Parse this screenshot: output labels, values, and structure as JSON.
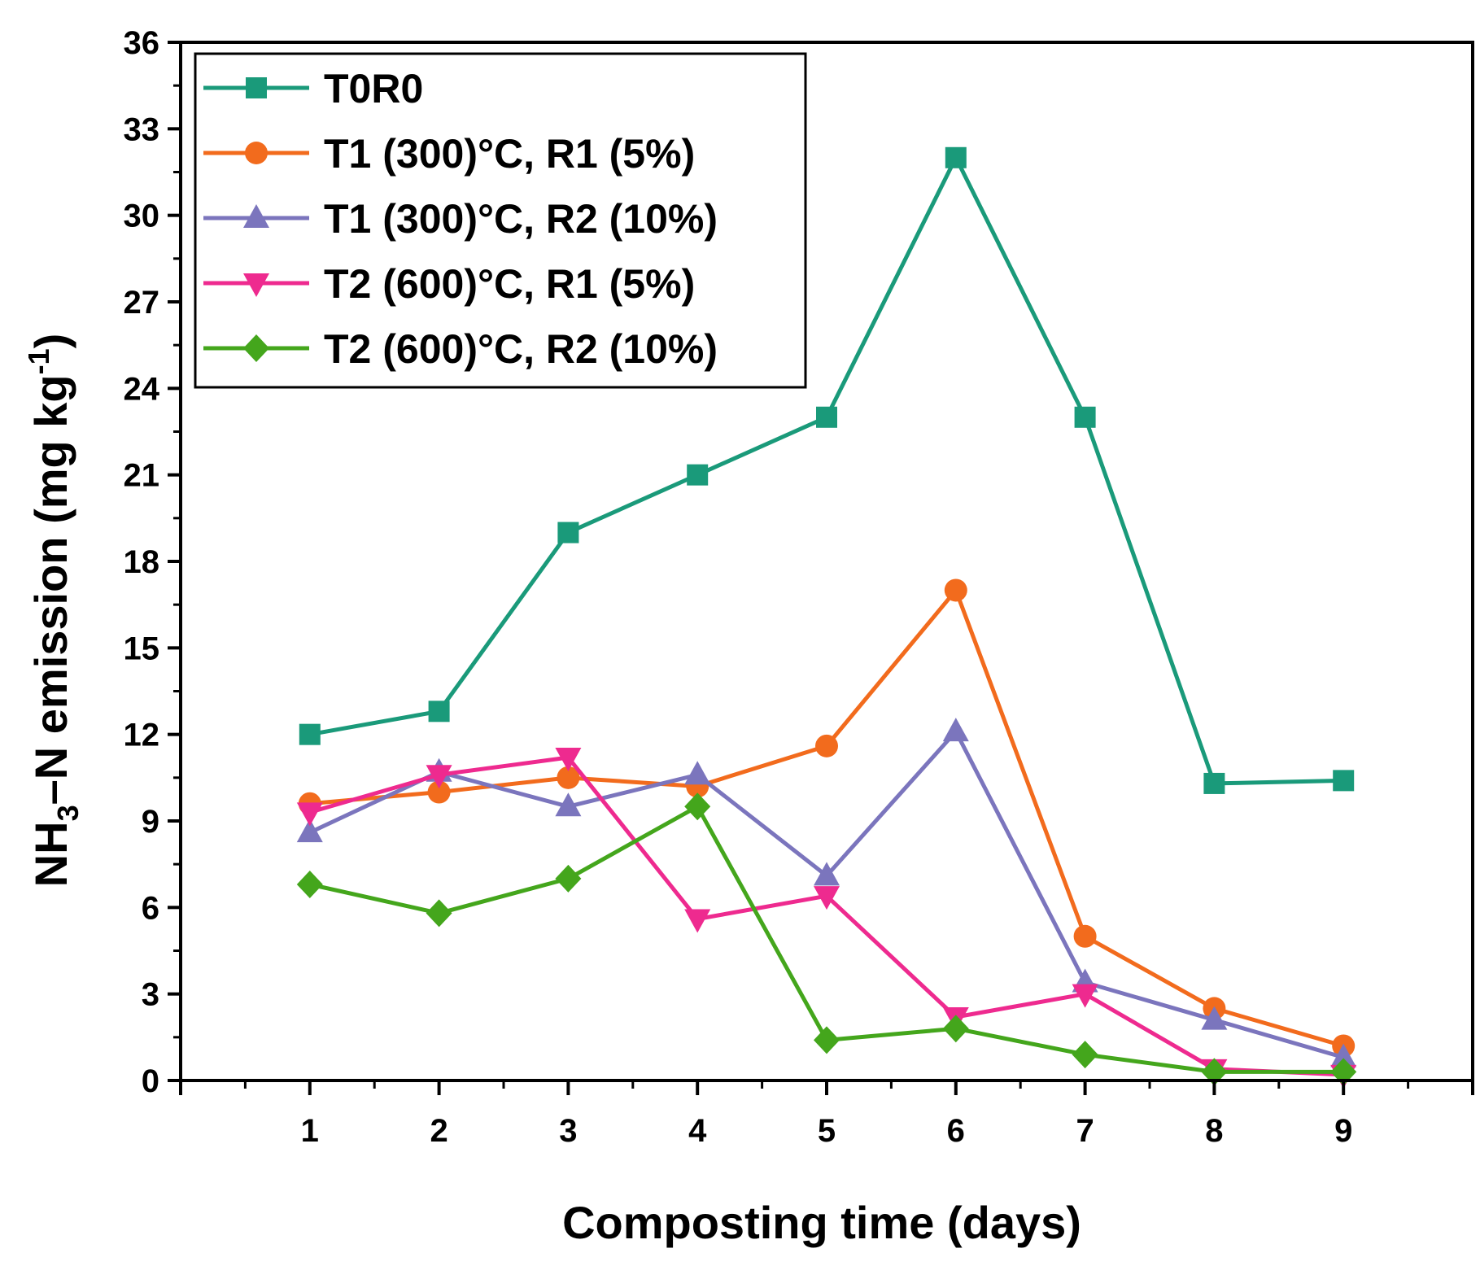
{
  "chart_data": {
    "type": "line",
    "title": "",
    "xlabel": "Composting time (days)",
    "ylabel": {
      "main": "NH",
      "sub": "3",
      "rest": "–N emission (mg kg",
      "sup": "-1",
      "close": ")"
    },
    "xlim": [
      0,
      10
    ],
    "ylim": [
      0,
      36
    ],
    "x": [
      1,
      2,
      3,
      4,
      5,
      6,
      7,
      8,
      9
    ],
    "x_tick_labels": [
      "1",
      "2",
      "3",
      "4",
      "5",
      "6",
      "7",
      "8",
      "9"
    ],
    "y_ticks": [
      0,
      3,
      6,
      9,
      12,
      15,
      18,
      21,
      24,
      27,
      30,
      33,
      36
    ],
    "y_tick_labels": [
      "0",
      "3",
      "6",
      "9",
      "12",
      "15",
      "18",
      "21",
      "24",
      "27",
      "30",
      "33",
      "36"
    ],
    "grid": false,
    "legend_position": "top-left",
    "series": [
      {
        "name": "T0R0",
        "color": "#1a9a7a",
        "marker": "square",
        "values": [
          12.0,
          12.8,
          19.0,
          21.0,
          23.0,
          32.0,
          23.0,
          10.3,
          10.4
        ]
      },
      {
        "name": "T1 (300)°C, R1 (5%)",
        "color": "#f26b1d",
        "marker": "circle",
        "values": [
          9.6,
          10.0,
          10.5,
          10.2,
          11.6,
          17.0,
          5.0,
          2.5,
          1.2
        ]
      },
      {
        "name": "T1 (300)°C, R2 (10%)",
        "color": "#7b75bd",
        "marker": "triangle-up",
        "values": [
          8.6,
          10.7,
          9.5,
          10.6,
          7.1,
          12.1,
          3.4,
          2.1,
          0.8
        ]
      },
      {
        "name": "T2 (600)°C, R1 (5%)",
        "color": "#ee2a8f",
        "marker": "triangle-down",
        "values": [
          9.3,
          10.6,
          11.2,
          5.6,
          6.4,
          2.2,
          3.0,
          0.4,
          0.2
        ]
      },
      {
        "name": "T2 (600)°C, R2 (10%)",
        "color": "#44a61c",
        "marker": "diamond",
        "values": [
          6.8,
          5.8,
          7.0,
          9.5,
          1.4,
          1.8,
          0.9,
          0.3,
          0.3
        ]
      }
    ]
  }
}
